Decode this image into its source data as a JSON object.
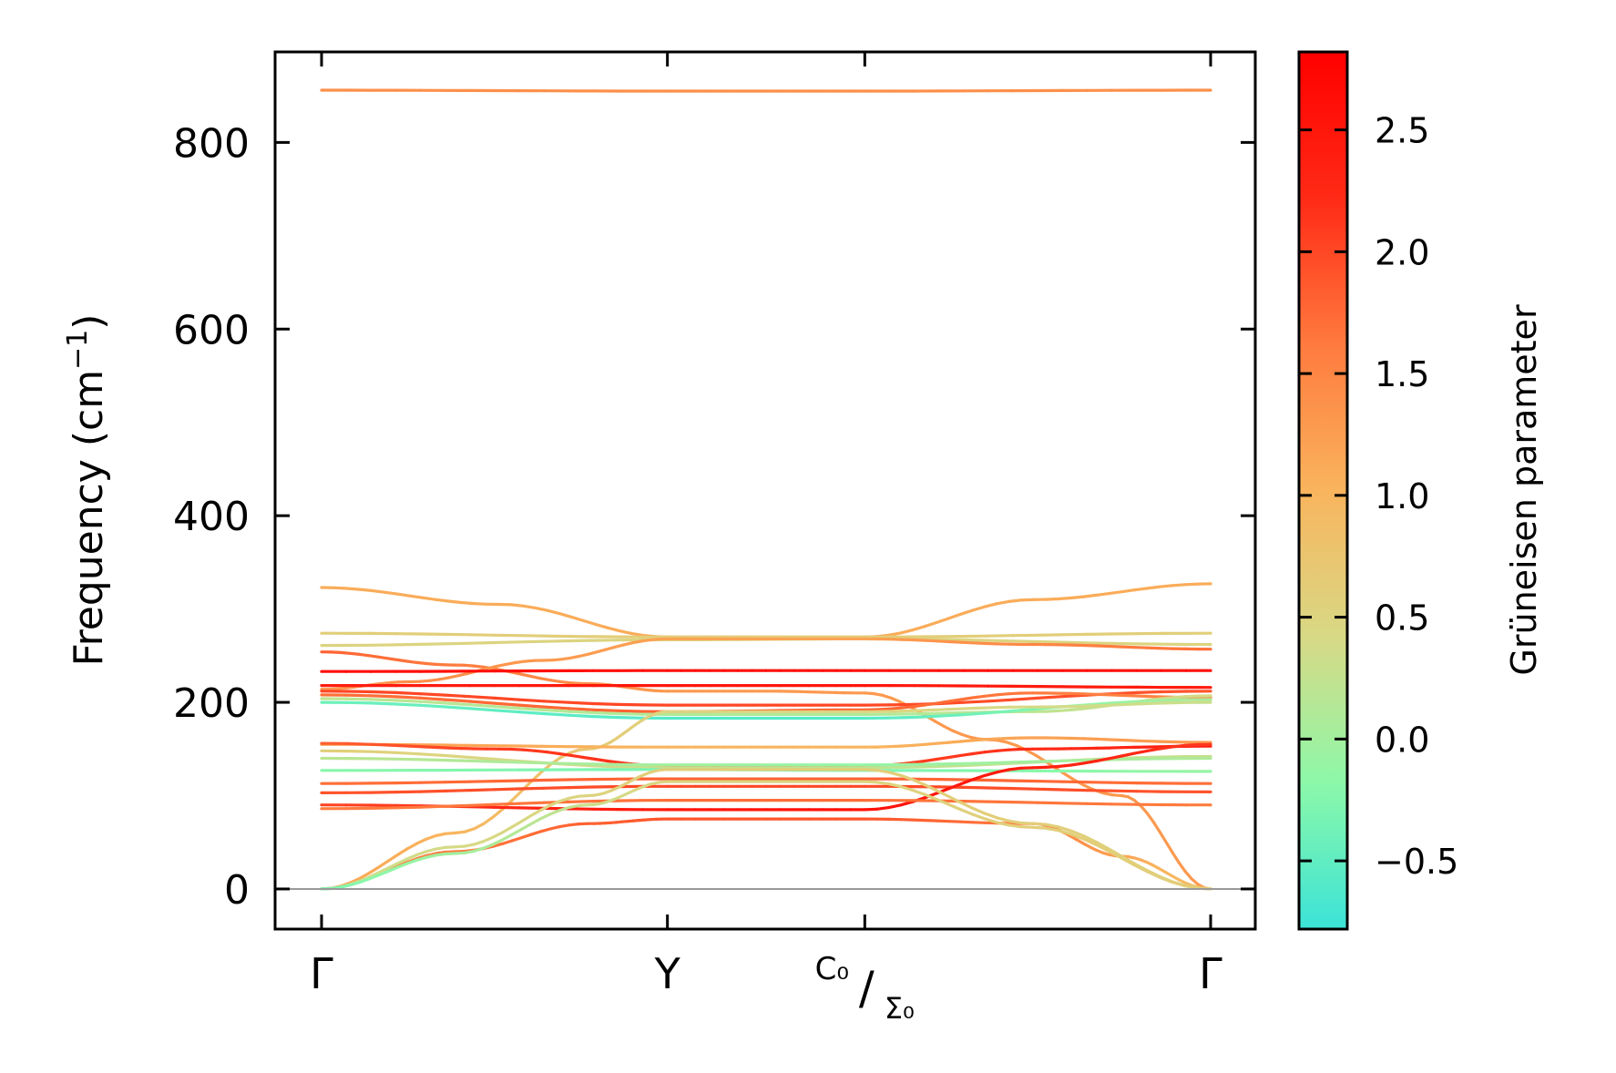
{
  "chart_data": {
    "type": "line",
    "title": "",
    "xlabel": "",
    "ylabel": "Frequency (cm⁻¹)",
    "ylabel_parts": {
      "main": "Frequency (cm",
      "sup": "−1",
      "close": ")"
    },
    "ylim": [
      -43,
      897
    ],
    "x_path": [
      0,
      0.389,
      0.611,
      1.0
    ],
    "x_ticks": [
      {
        "x": 0.0,
        "label": "Γ"
      },
      {
        "x": 0.389,
        "label": "Y"
      },
      {
        "x": 0.611,
        "label_top": "C₀",
        "label_slash": "/",
        "label_bottom": "Σ₀"
      },
      {
        "x": 1.0,
        "label": "Γ"
      }
    ],
    "y_ticks": [
      0,
      200,
      400,
      600,
      800
    ],
    "zero_line": 0,
    "colorbar": {
      "label": "Grüneisen parameter",
      "range": [
        -0.78,
        2.82
      ],
      "ticks": [
        -0.5,
        0.0,
        0.5,
        1.0,
        1.5,
        2.0,
        2.5
      ],
      "tick_labels": [
        "−0.5",
        "0.0",
        "0.5",
        "1.0",
        "1.5",
        "2.0",
        "2.5"
      ],
      "colormap": "rainbow-upper",
      "colormap_stops": [
        "#3be3d7",
        "#8cf8a9",
        "#d8d985",
        "#f9b45d",
        "#ff7a3e",
        "#ff2a16",
        "#ff0000"
      ]
    },
    "series": [
      {
        "values": [
          [
            0,
            856
          ],
          [
            0.389,
            855
          ],
          [
            0.611,
            855
          ],
          [
            1.0,
            856
          ]
        ],
        "gamma": [
          1.4,
          1.4,
          1.4,
          1.4
        ]
      },
      {
        "values": [
          [
            0,
            323
          ],
          [
            0.2,
            305
          ],
          [
            0.389,
            270
          ],
          [
            0.611,
            270
          ],
          [
            0.8,
            310
          ],
          [
            1.0,
            327
          ]
        ],
        "gamma": [
          1.1,
          1.1,
          1.1,
          1.1,
          1.1,
          1.1
        ]
      },
      {
        "values": [
          [
            0,
            274
          ],
          [
            0.389,
            270
          ],
          [
            0.611,
            270
          ],
          [
            1.0,
            274
          ]
        ],
        "gamma": [
          0.6,
          0.6,
          0.6,
          0.6
        ]
      },
      {
        "values": [
          [
            0,
            261
          ],
          [
            0.389,
            267
          ],
          [
            0.611,
            268
          ],
          [
            1.0,
            262
          ]
        ],
        "gamma": [
          0.5,
          0.5,
          0.5,
          0.5
        ]
      },
      {
        "values": [
          [
            0,
            254
          ],
          [
            0.15,
            240
          ],
          [
            0.3,
            220
          ],
          [
            0.389,
            212
          ],
          [
            0.5,
            212
          ],
          [
            0.611,
            210
          ],
          [
            0.75,
            160
          ],
          [
            0.9,
            100
          ],
          [
            1.0,
            0
          ]
        ],
        "gamma": [
          1.8,
          1.6,
          1.4,
          1.3,
          1.3,
          1.3,
          1.3,
          1.3,
          1.3
        ]
      },
      {
        "values": [
          [
            0,
            214
          ],
          [
            0.1,
            222
          ],
          [
            0.25,
            245
          ],
          [
            0.389,
            268
          ],
          [
            0.611,
            268
          ],
          [
            0.8,
            262
          ],
          [
            1.0,
            257
          ]
        ],
        "gamma": [
          1.3,
          1.4,
          1.3,
          1.2,
          1.2,
          1.5,
          1.7
        ]
      },
      {
        "values": [
          [
            0,
            233
          ],
          [
            0.389,
            234
          ],
          [
            0.611,
            234
          ],
          [
            1.0,
            234
          ]
        ],
        "gamma": [
          2.6,
          2.6,
          2.6,
          2.6
        ]
      },
      {
        "values": [
          [
            0,
            218
          ],
          [
            0.389,
            218
          ],
          [
            0.611,
            218
          ],
          [
            1.0,
            216
          ]
        ],
        "gamma": [
          2.4,
          2.5,
          2.5,
          2.4
        ]
      },
      {
        "values": [
          [
            0,
            212
          ],
          [
            0.389,
            197
          ],
          [
            0.611,
            197
          ],
          [
            1.0,
            212
          ]
        ],
        "gamma": [
          2.0,
          2.0,
          2.0,
          1.9
        ]
      },
      {
        "values": [
          [
            0,
            208
          ],
          [
            0.389,
            190
          ],
          [
            0.611,
            192
          ],
          [
            0.8,
            210
          ],
          [
            1.0,
            205
          ]
        ],
        "gamma": [
          1.7,
          1.8,
          1.8,
          1.6,
          1.5
        ]
      },
      {
        "values": [
          [
            0,
            204
          ],
          [
            0.389,
            187
          ],
          [
            0.611,
            187
          ],
          [
            0.8,
            190
          ],
          [
            1.0,
            207
          ]
        ],
        "gamma": [
          0.2,
          0.1,
          0.1,
          0.2,
          0.4
        ]
      },
      {
        "values": [
          [
            0,
            200
          ],
          [
            0.389,
            183
          ],
          [
            0.611,
            183
          ],
          [
            1.0,
            203
          ]
        ],
        "gamma": [
          -0.4,
          -0.6,
          -0.6,
          0.1
        ]
      },
      {
        "values": [
          [
            0,
            0
          ],
          [
            0.15,
            60
          ],
          [
            0.3,
            150
          ],
          [
            0.389,
            190
          ],
          [
            0.611,
            190
          ],
          [
            0.8,
            195
          ],
          [
            1.0,
            200
          ]
        ],
        "gamma": [
          1.2,
          1.0,
          0.7,
          0.5,
          0.5,
          0.4,
          0.3
        ]
      },
      {
        "values": [
          [
            0,
            155
          ],
          [
            0.389,
            152
          ],
          [
            0.611,
            152
          ],
          [
            0.8,
            162
          ],
          [
            1.0,
            157
          ]
        ],
        "gamma": [
          1.3,
          1.0,
          1.0,
          1.2,
          1.3
        ]
      },
      {
        "values": [
          [
            0,
            156
          ],
          [
            0.2,
            150
          ],
          [
            0.389,
            132
          ],
          [
            0.611,
            132
          ],
          [
            0.8,
            150
          ],
          [
            1.0,
            153
          ]
        ],
        "gamma": [
          1.8,
          2.1,
          2.2,
          2.0,
          2.2,
          2.4
        ]
      },
      {
        "values": [
          [
            0,
            148
          ],
          [
            0.389,
            130
          ],
          [
            0.611,
            130
          ],
          [
            1.0,
            142
          ]
        ],
        "gamma": [
          0.6,
          0.3,
          0.2,
          0.3
        ]
      },
      {
        "values": [
          [
            0,
            140
          ],
          [
            0.389,
            133
          ],
          [
            0.611,
            133
          ],
          [
            1.0,
            140
          ]
        ],
        "gamma": [
          0.2,
          0.0,
          -0.1,
          0.1
        ]
      },
      {
        "values": [
          [
            0,
            127
          ],
          [
            0.389,
            128
          ],
          [
            0.611,
            127
          ],
          [
            1.0,
            126
          ]
        ],
        "gamma": [
          -0.2,
          -0.3,
          -0.3,
          -0.1
        ]
      },
      {
        "values": [
          [
            0,
            113
          ],
          [
            0.389,
            118
          ],
          [
            0.611,
            118
          ],
          [
            1.0,
            113
          ]
        ],
        "gamma": [
          1.7,
          1.8,
          1.8,
          1.7
        ]
      },
      {
        "values": [
          [
            0,
            103
          ],
          [
            0.389,
            110
          ],
          [
            0.611,
            110
          ],
          [
            1.0,
            104
          ]
        ],
        "gamma": [
          1.9,
          2.0,
          2.0,
          1.9
        ]
      },
      {
        "values": [
          [
            0,
            90
          ],
          [
            0.389,
            85
          ],
          [
            0.611,
            85
          ],
          [
            0.8,
            130
          ],
          [
            1.0,
            155
          ]
        ],
        "gamma": [
          2.0,
          2.5,
          2.6,
          2.4,
          2.1
        ]
      },
      {
        "values": [
          [
            0,
            86
          ],
          [
            0.389,
            95
          ],
          [
            0.611,
            95
          ],
          [
            1.0,
            90
          ]
        ],
        "gamma": [
          1.6,
          1.7,
          1.7,
          1.6
        ]
      },
      {
        "values": [
          [
            0,
            0
          ],
          [
            0.15,
            40
          ],
          [
            0.3,
            70
          ],
          [
            0.389,
            75
          ],
          [
            0.611,
            75
          ],
          [
            0.8,
            70
          ],
          [
            0.9,
            35
          ],
          [
            1.0,
            0
          ]
        ],
        "gamma": [
          1.5,
          1.6,
          1.8,
          1.9,
          1.9,
          1.6,
          1.2,
          0.8
        ]
      },
      {
        "values": [
          [
            0,
            0
          ],
          [
            0.15,
            45
          ],
          [
            0.3,
            100
          ],
          [
            0.389,
            128
          ],
          [
            0.611,
            128
          ],
          [
            0.8,
            70
          ],
          [
            1.0,
            0
          ]
        ],
        "gamma": [
          0.3,
          0.4,
          0.5,
          0.6,
          0.6,
          0.6,
          0.5
        ]
      },
      {
        "values": [
          [
            0,
            0
          ],
          [
            0.15,
            38
          ],
          [
            0.3,
            90
          ],
          [
            0.389,
            115
          ],
          [
            0.611,
            115
          ],
          [
            0.8,
            66
          ],
          [
            1.0,
            0
          ]
        ],
        "gamma": [
          -0.3,
          0.0,
          0.3,
          0.5,
          0.5,
          0.6,
          0.6
        ]
      }
    ]
  }
}
